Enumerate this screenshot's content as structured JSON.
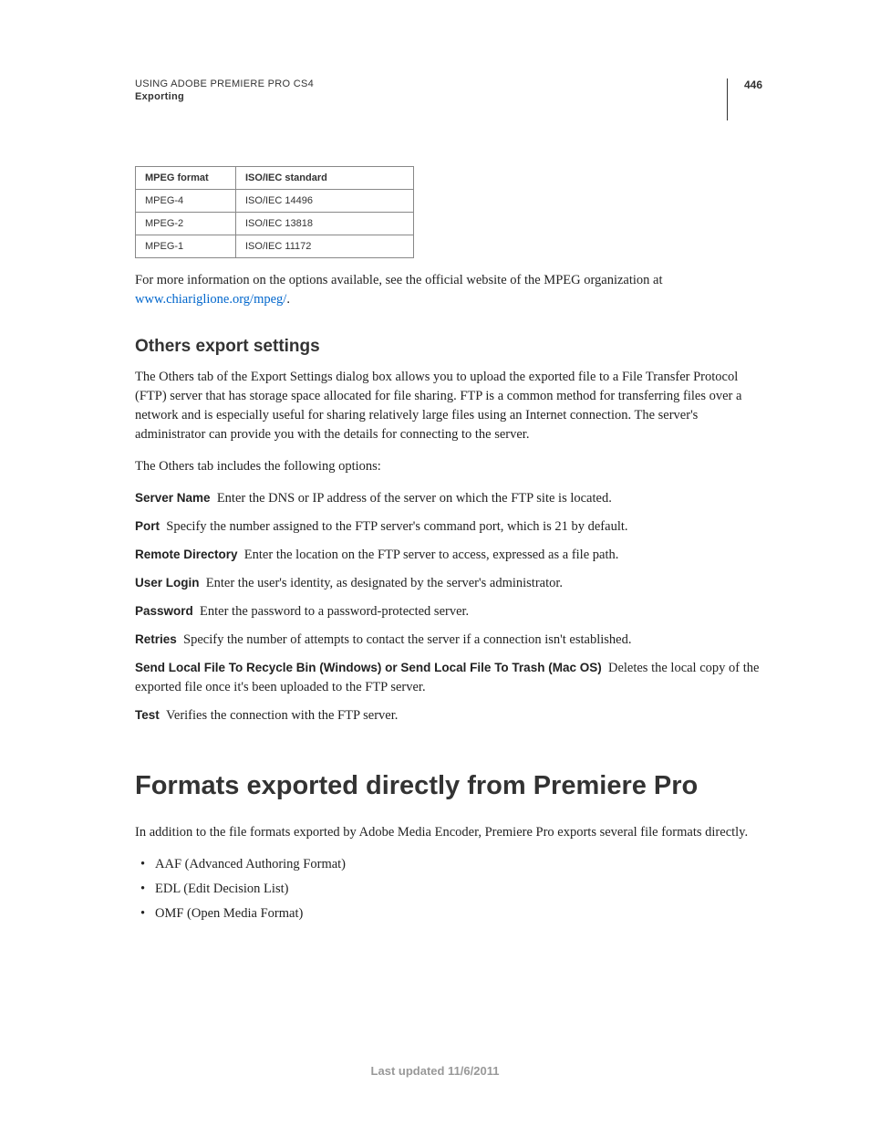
{
  "header": {
    "title": "USING ADOBE PREMIERE PRO CS4",
    "subtitle": "Exporting",
    "page_number": "446"
  },
  "table": {
    "headers": [
      "MPEG format",
      "ISO/IEC standard"
    ],
    "rows": [
      [
        "MPEG-4",
        "ISO/IEC 14496"
      ],
      [
        "MPEG-2",
        "ISO/IEC 13818"
      ],
      [
        "MPEG-1",
        "ISO/IEC 11172"
      ]
    ],
    "border_color": "#888888",
    "font_size": 11
  },
  "intro_text": "For more information on the options available, see the official website of the MPEG organization at ",
  "link_text": "www.chiariglione.org/mpeg/",
  "link_color": "#0066cc",
  "section1": {
    "heading": "Others export settings",
    "para1": "The Others tab of the Export Settings dialog box allows you to upload the exported file to a File Transfer Protocol (FTP) server that has storage space allocated for file sharing. FTP is a common method for transferring files over a network and is especially useful for sharing relatively large files using an Internet connection. The server's administrator can provide you with the details for connecting to the server.",
    "para2": "The Others tab includes the following options:",
    "options": [
      {
        "term": "Server Name",
        "desc": "Enter the DNS or IP address of the server on which the FTP site is located."
      },
      {
        "term": "Port",
        "desc": "Specify the number assigned to the FTP server's command port, which is 21 by default."
      },
      {
        "term": "Remote Directory",
        "desc": "Enter the location on the FTP server to access, expressed as a file path."
      },
      {
        "term": "User Login",
        "desc": "Enter the user's identity, as designated by the server's administrator."
      },
      {
        "term": "Password",
        "desc": "Enter the password to a password-protected server."
      },
      {
        "term": "Retries",
        "desc": "Specify the number of attempts to contact the server if a connection isn't established."
      },
      {
        "term": "Send Local File To Recycle Bin (Windows) or Send Local File To Trash (Mac OS)",
        "desc": "Deletes the local copy of the exported file once it's been uploaded to the FTP server."
      },
      {
        "term": "Test",
        "desc": "Verifies the connection with the FTP server."
      }
    ]
  },
  "section2": {
    "heading": "Formats exported directly from Premiere Pro",
    "intro": "In addition to the file formats exported by Adobe Media Encoder, Premiere Pro exports several file formats directly.",
    "bullets": [
      "AAF (Advanced Authoring Format)",
      "EDL (Edit Decision List)",
      "OMF (Open Media Format)"
    ]
  },
  "footer": "Last updated 11/6/2011",
  "colors": {
    "text": "#222222",
    "heading": "#333333",
    "footer": "#999999",
    "background": "#ffffff"
  },
  "typography": {
    "body_font": "Georgia, serif",
    "heading_font": "Arial, sans-serif",
    "body_size": 14.5,
    "section_heading_size": 19,
    "main_heading_size": 29
  }
}
